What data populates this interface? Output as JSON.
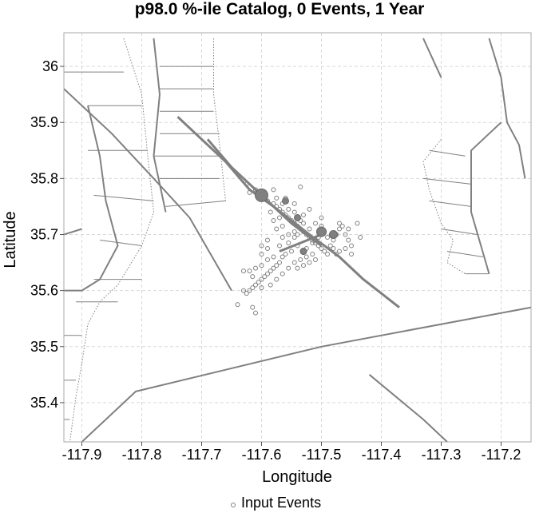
{
  "chart_data": {
    "type": "scatter",
    "title": "p98.0 %-ile Catalog, 0 Events, 1 Year",
    "xlabel": "Longitude",
    "ylabel": "Latitude",
    "xlim": [
      -117.93,
      -117.15
    ],
    "ylim": [
      35.33,
      36.06
    ],
    "xticks": [
      -117.9,
      -117.8,
      -117.7,
      -117.6,
      -117.5,
      -117.4,
      -117.3,
      -117.2
    ],
    "xtick_labels": [
      "-117.9",
      "-117.8",
      "-117.7",
      "-117.6",
      "-117.5",
      "-117.4",
      "-117.3",
      "-117.2"
    ],
    "yticks": [
      35.4,
      35.5,
      35.6,
      35.7,
      35.8,
      35.9,
      36.0
    ],
    "ytick_labels": [
      "35.4",
      "35.5",
      "35.6",
      "35.7",
      "35.8",
      "35.9",
      "36"
    ],
    "grid": true,
    "legend": {
      "position": "bottom-center",
      "entries": [
        "Input Events"
      ]
    },
    "colors": {
      "faults": "#808080",
      "markers": "#808080",
      "grid": "#d9d9d9",
      "frame": "#aaaaaa"
    },
    "fault_traces": [
      [
        [
          -117.74,
          35.91
        ],
        [
          -117.7,
          35.87
        ],
        [
          -117.66,
          35.83
        ],
        [
          -117.62,
          35.78
        ],
        [
          -117.58,
          35.75
        ],
        [
          -117.52,
          35.7
        ],
        [
          -117.47,
          35.66
        ],
        [
          -117.43,
          35.62
        ],
        [
          -117.37,
          35.57
        ]
      ],
      [
        [
          -117.69,
          35.87
        ],
        [
          -117.65,
          35.82
        ],
        [
          -117.6,
          35.77
        ],
        [
          -117.55,
          35.72
        ],
        [
          -117.5,
          35.68
        ]
      ],
      [
        [
          -117.57,
          35.67
        ],
        [
          -117.5,
          35.7
        ]
      ],
      [
        [
          -117.93,
          35.96
        ],
        [
          -117.85,
          35.88
        ],
        [
          -117.78,
          35.8
        ],
        [
          -117.72,
          35.73
        ],
        [
          -117.65,
          35.6
        ]
      ],
      [
        [
          -117.89,
          35.93
        ],
        [
          -117.87,
          35.84
        ],
        [
          -117.86,
          35.76
        ],
        [
          -117.84,
          35.68
        ],
        [
          -117.87,
          35.62
        ],
        [
          -117.9,
          35.6
        ],
        [
          -117.93,
          35.6
        ]
      ],
      [
        [
          -117.9,
          35.33
        ],
        [
          -117.81,
          35.42
        ],
        [
          -117.5,
          35.5
        ],
        [
          -117.15,
          35.57
        ]
      ],
      [
        [
          -117.78,
          36.05
        ],
        [
          -117.77,
          35.95
        ],
        [
          -117.78,
          35.84
        ],
        [
          -117.76,
          35.74
        ]
      ],
      [
        [
          -117.42,
          35.45
        ],
        [
          -117.33,
          35.37
        ],
        [
          -117.29,
          35.33
        ]
      ],
      [
        [
          -117.33,
          36.05
        ],
        [
          -117.3,
          35.98
        ]
      ],
      [
        [
          -117.22,
          36.05
        ],
        [
          -117.2,
          35.98
        ],
        [
          -117.19,
          35.9
        ],
        [
          -117.17,
          35.86
        ],
        [
          -117.16,
          35.8
        ]
      ],
      [
        [
          -117.2,
          35.9
        ],
        [
          -117.25,
          35.85
        ],
        [
          -117.25,
          35.74
        ],
        [
          -117.22,
          35.63
        ]
      ],
      [
        [
          -117.93,
          35.7
        ],
        [
          -117.9,
          35.71
        ]
      ]
    ],
    "dotted_traces": [
      [
        [
          -117.83,
          36.05
        ],
        [
          -117.8,
          35.95
        ],
        [
          -117.79,
          35.84
        ],
        [
          -117.78,
          35.74
        ],
        [
          -117.8,
          35.68
        ],
        [
          -117.84,
          35.61
        ],
        [
          -117.87,
          35.58
        ],
        [
          -117.89,
          35.54
        ],
        [
          -117.9,
          35.47
        ],
        [
          -117.91,
          35.41
        ],
        [
          -117.92,
          35.33
        ]
      ],
      [
        [
          -117.68,
          36.05
        ],
        [
          -117.68,
          35.95
        ],
        [
          -117.67,
          35.86
        ],
        [
          -117.66,
          35.76
        ]
      ],
      [
        [
          -117.3,
          35.87
        ],
        [
          -117.33,
          35.83
        ],
        [
          -117.32,
          35.78
        ],
        [
          -117.3,
          35.72
        ],
        [
          -117.28,
          35.69
        ],
        [
          -117.29,
          35.65
        ],
        [
          -117.26,
          35.63
        ]
      ]
    ],
    "hatch_lines": [
      [
        [
          -117.93,
          35.99
        ],
        [
          -117.83,
          35.99
        ]
      ],
      [
        [
          -117.89,
          35.93
        ],
        [
          -117.8,
          35.93
        ]
      ],
      [
        [
          -117.89,
          35.85
        ],
        [
          -117.79,
          35.85
        ]
      ],
      [
        [
          -117.88,
          35.77
        ],
        [
          -117.78,
          35.76
        ]
      ],
      [
        [
          -117.87,
          35.69
        ],
        [
          -117.8,
          35.68
        ]
      ],
      [
        [
          -117.88,
          35.62
        ],
        [
          -117.8,
          35.62
        ]
      ],
      [
        [
          -117.91,
          35.58
        ],
        [
          -117.84,
          35.58
        ]
      ],
      [
        [
          -117.93,
          35.52
        ],
        [
          -117.9,
          35.52
        ]
      ],
      [
        [
          -117.93,
          35.44
        ],
        [
          -117.91,
          35.44
        ]
      ],
      [
        [
          -117.93,
          35.37
        ],
        [
          -117.92,
          35.37
        ]
      ],
      [
        [
          -117.77,
          36.0
        ],
        [
          -117.68,
          36.0
        ]
      ],
      [
        [
          -117.77,
          35.96
        ],
        [
          -117.68,
          35.96
        ]
      ],
      [
        [
          -117.77,
          35.92
        ],
        [
          -117.68,
          35.92
        ]
      ],
      [
        [
          -117.77,
          35.88
        ],
        [
          -117.67,
          35.88
        ]
      ],
      [
        [
          -117.78,
          35.84
        ],
        [
          -117.67,
          35.84
        ]
      ],
      [
        [
          -117.77,
          35.8
        ],
        [
          -117.67,
          35.8
        ]
      ],
      [
        [
          -117.76,
          35.75
        ],
        [
          -117.66,
          35.76
        ]
      ],
      [
        [
          -117.32,
          35.85
        ],
        [
          -117.26,
          35.84
        ]
      ],
      [
        [
          -117.33,
          35.8
        ],
        [
          -117.25,
          35.79
        ]
      ],
      [
        [
          -117.32,
          35.76
        ],
        [
          -117.25,
          35.75
        ]
      ],
      [
        [
          -117.3,
          35.71
        ],
        [
          -117.24,
          35.7
        ]
      ],
      [
        [
          -117.29,
          35.67
        ],
        [
          -117.23,
          35.66
        ]
      ],
      [
        [
          -117.26,
          35.63
        ],
        [
          -117.22,
          35.63
        ]
      ]
    ],
    "large_events": [
      {
        "lon": -117.6,
        "lat": 35.77,
        "r": 8
      },
      {
        "lon": -117.5,
        "lat": 35.705,
        "r": 6
      },
      {
        "lon": -117.48,
        "lat": 35.7,
        "r": 5
      },
      {
        "lon": -117.56,
        "lat": 35.76,
        "r": 4
      },
      {
        "lon": -117.54,
        "lat": 35.73,
        "r": 4
      },
      {
        "lon": -117.53,
        "lat": 35.67,
        "r": 4
      }
    ],
    "events": [
      [
        -117.625,
        35.79
      ],
      [
        -117.62,
        35.775
      ],
      [
        -117.61,
        35.78
      ],
      [
        -117.605,
        35.77
      ],
      [
        -117.59,
        35.76
      ],
      [
        -117.58,
        35.755
      ],
      [
        -117.575,
        35.75
      ],
      [
        -117.57,
        35.745
      ],
      [
        -117.565,
        35.74
      ],
      [
        -117.56,
        35.735
      ],
      [
        -117.555,
        35.73
      ],
      [
        -117.55,
        35.725
      ],
      [
        -117.545,
        35.72
      ],
      [
        -117.54,
        35.715
      ],
      [
        -117.535,
        35.71
      ],
      [
        -117.53,
        35.705
      ],
      [
        -117.525,
        35.7
      ],
      [
        -117.52,
        35.695
      ],
      [
        -117.515,
        35.69
      ],
      [
        -117.51,
        35.685
      ],
      [
        -117.505,
        35.68
      ],
      [
        -117.5,
        35.675
      ],
      [
        -117.495,
        35.67
      ],
      [
        -117.49,
        35.665
      ],
      [
        -117.485,
        35.68
      ],
      [
        -117.48,
        35.69
      ],
      [
        -117.475,
        35.7
      ],
      [
        -117.47,
        35.71
      ],
      [
        -117.465,
        35.715
      ],
      [
        -117.46,
        35.7
      ],
      [
        -117.455,
        35.69
      ],
      [
        -117.45,
        35.68
      ],
      [
        -117.52,
        35.745
      ],
      [
        -117.53,
        35.735
      ],
      [
        -117.545,
        35.755
      ],
      [
        -117.535,
        35.785
      ],
      [
        -117.56,
        35.765
      ],
      [
        -117.57,
        35.73
      ],
      [
        -117.58,
        35.725
      ],
      [
        -117.585,
        35.74
      ],
      [
        -117.575,
        35.71
      ],
      [
        -117.565,
        35.715
      ],
      [
        -117.555,
        35.7
      ],
      [
        -117.545,
        35.695
      ],
      [
        -117.54,
        35.68
      ],
      [
        -117.55,
        35.67
      ],
      [
        -117.56,
        35.665
      ],
      [
        -117.565,
        35.66
      ],
      [
        -117.57,
        35.65
      ],
      [
        -117.575,
        35.645
      ],
      [
        -117.58,
        35.64
      ],
      [
        -117.585,
        35.635
      ],
      [
        -117.59,
        35.63
      ],
      [
        -117.595,
        35.625
      ],
      [
        -117.6,
        35.62
      ],
      [
        -117.605,
        35.615
      ],
      [
        -117.61,
        35.61
      ],
      [
        -117.615,
        35.605
      ],
      [
        -117.62,
        35.6
      ],
      [
        -117.625,
        35.595
      ],
      [
        -117.61,
        35.64
      ],
      [
        -117.6,
        35.645
      ],
      [
        -117.59,
        35.655
      ],
      [
        -117.58,
        35.66
      ],
      [
        -117.6,
        35.68
      ],
      [
        -117.59,
        35.675
      ],
      [
        -117.57,
        35.68
      ],
      [
        -117.62,
        35.635
      ],
      [
        -117.615,
        35.625
      ],
      [
        -117.6,
        35.605
      ],
      [
        -117.585,
        35.61
      ],
      [
        -117.575,
        35.62
      ],
      [
        -117.565,
        35.63
      ],
      [
        -117.555,
        35.64
      ],
      [
        -117.545,
        35.65
      ],
      [
        -117.535,
        35.655
      ],
      [
        -117.525,
        35.66
      ],
      [
        -117.515,
        35.665
      ],
      [
        -117.51,
        35.655
      ],
      [
        -117.52,
        35.65
      ],
      [
        -117.53,
        35.645
      ],
      [
        -117.54,
        35.64
      ],
      [
        -117.525,
        35.675
      ],
      [
        -117.515,
        35.685
      ],
      [
        -117.505,
        35.695
      ],
      [
        -117.495,
        35.705
      ],
      [
        -117.49,
        35.695
      ],
      [
        -117.48,
        35.675
      ],
      [
        -117.47,
        35.67
      ],
      [
        -117.46,
        35.675
      ],
      [
        -117.475,
        35.665
      ],
      [
        -117.5,
        35.715
      ],
      [
        -117.51,
        35.72
      ],
      [
        -117.52,
        35.71
      ],
      [
        -117.53,
        35.72
      ],
      [
        -117.54,
        35.7
      ],
      [
        -117.5,
        35.73
      ],
      [
        -117.44,
        35.72
      ],
      [
        -117.435,
        35.695
      ],
      [
        -117.47,
        35.72
      ],
      [
        -117.455,
        35.71
      ],
      [
        -117.45,
        35.665
      ],
      [
        -117.63,
        35.6
      ],
      [
        -117.64,
        35.575
      ],
      [
        -117.615,
        35.57
      ],
      [
        -117.61,
        35.56
      ],
      [
        -117.63,
        35.635
      ],
      [
        -117.6,
        35.665
      ],
      [
        -117.59,
        35.69
      ],
      [
        -117.555,
        35.685
      ],
      [
        -117.565,
        35.695
      ],
      [
        -117.545,
        35.705
      ],
      [
        -117.535,
        35.725
      ],
      [
        -117.545,
        35.74
      ],
      [
        -117.555,
        35.745
      ],
      [
        -117.565,
        35.755
      ],
      [
        -117.575,
        35.765
      ],
      [
        -117.595,
        35.77
      ],
      [
        -117.58,
        35.78
      ]
    ]
  }
}
